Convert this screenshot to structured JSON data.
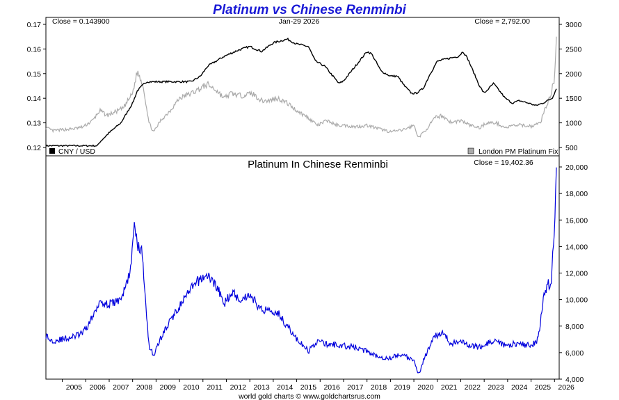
{
  "chart_data": [
    {
      "type": "line",
      "title": "Platinum vs Chinese Renminbi",
      "date_label": "Jan-29  2026",
      "left_close": "Close = 0.143900",
      "right_close": "Close = 2,792.00",
      "left_axis": {
        "ylim": [
          0.12,
          0.17
        ],
        "ticks": [
          "0.12",
          "0.13",
          "0.14",
          "0.15",
          "0.16",
          "0.17"
        ]
      },
      "right_axis": {
        "ylim": [
          500,
          3000
        ],
        "ticks": [
          "500",
          "1000",
          "1500",
          "2000",
          "2500",
          "3000"
        ]
      },
      "series": [
        {
          "name": "CNY / USD",
          "axis": "left",
          "color": "#000000",
          "x": [
            2004.3,
            2006.5,
            2006.6,
            2007.0,
            2007.5,
            2008.0,
            2008.2,
            2008.45,
            2008.6,
            2010.5,
            2010.9,
            2011.2,
            2011.9,
            2012.5,
            2013.0,
            2013.5,
            2014.0,
            2014.2,
            2014.6,
            2015.0,
            2015.5,
            2015.8,
            2016.2,
            2016.8,
            2017.0,
            2017.5,
            2018.0,
            2018.2,
            2018.6,
            2019.0,
            2019.3,
            2019.6,
            2019.9,
            2020.1,
            2020.4,
            2020.7,
            2021.0,
            2021.4,
            2021.9,
            2022.1,
            2022.3,
            2022.8,
            2023.0,
            2023.4,
            2023.9,
            2024.2,
            2024.5,
            2024.9,
            2025.2,
            2025.5,
            2025.9,
            2026.08
          ],
          "values": [
            0.1207,
            0.1207,
            0.1222,
            0.126,
            0.13,
            0.138,
            0.143,
            0.1455,
            0.1467,
            0.1467,
            0.149,
            0.153,
            0.157,
            0.1595,
            0.161,
            0.159,
            0.1625,
            0.163,
            0.164,
            0.162,
            0.161,
            0.155,
            0.153,
            0.146,
            0.147,
            0.153,
            0.159,
            0.158,
            0.151,
            0.149,
            0.149,
            0.145,
            0.142,
            0.142,
            0.144,
            0.15,
            0.155,
            0.156,
            0.157,
            0.159,
            0.156,
            0.145,
            0.142,
            0.146,
            0.14,
            0.138,
            0.139,
            0.138,
            0.137,
            0.138,
            0.14,
            0.1439
          ]
        },
        {
          "name": "London PM Platinum Fix",
          "axis": "right",
          "color": "#aaaaaa",
          "x": [
            2004.3,
            2004.6,
            2005.0,
            2005.5,
            2005.9,
            2006.3,
            2006.6,
            2006.9,
            2007.3,
            2007.6,
            2008.0,
            2008.2,
            2008.45,
            2008.7,
            2008.9,
            2009.2,
            2009.6,
            2010.0,
            2010.5,
            2010.9,
            2011.2,
            2011.6,
            2011.9,
            2012.2,
            2012.6,
            2013.1,
            2013.5,
            2013.8,
            2014.2,
            2014.6,
            2015.0,
            2015.5,
            2015.9,
            2016.3,
            2016.7,
            2017.0,
            2017.5,
            2018.0,
            2018.5,
            2019.0,
            2019.5,
            2020.0,
            2020.2,
            2020.5,
            2020.9,
            2021.2,
            2021.6,
            2022.0,
            2022.4,
            2022.8,
            2023.1,
            2023.5,
            2023.9,
            2024.3,
            2024.7,
            2025.0,
            2025.4,
            2025.6,
            2025.8,
            2026.0,
            2026.08
          ],
          "values": [
            900,
            840,
            860,
            880,
            920,
            1050,
            1250,
            1150,
            1230,
            1300,
            1600,
            2050,
            1750,
            1000,
            810,
            1050,
            1250,
            1500,
            1600,
            1700,
            1780,
            1650,
            1500,
            1600,
            1550,
            1600,
            1450,
            1450,
            1500,
            1400,
            1250,
            1100,
            950,
            1050,
            950,
            950,
            920,
            950,
            880,
            820,
            850,
            950,
            700,
            850,
            1100,
            1150,
            1000,
            1050,
            950,
            900,
            1000,
            1000,
            900,
            950,
            950,
            930,
            1000,
            1300,
            1500,
            1900,
            2792
          ]
        },
        {
          "name": "Platinum In Chinese Renminbi",
          "axis": "bottom",
          "color": "#0000dd",
          "x": [
            2004.3,
            2004.5,
            2005.0,
            2005.5,
            2005.9,
            2006.3,
            2006.6,
            2006.9,
            2007.3,
            2007.6,
            2007.9,
            2008.1,
            2008.2,
            2008.4,
            2008.7,
            2008.9,
            2009.2,
            2009.6,
            2010.0,
            2010.5,
            2010.9,
            2011.2,
            2011.6,
            2011.9,
            2012.2,
            2012.6,
            2013.0,
            2013.5,
            2013.8,
            2014.2,
            2014.6,
            2015.0,
            2015.5,
            2015.9,
            2016.3,
            2016.7,
            2017.0,
            2017.5,
            2018.0,
            2018.5,
            2019.0,
            2019.5,
            2020.0,
            2020.2,
            2020.5,
            2020.9,
            2021.2,
            2021.6,
            2022.0,
            2022.4,
            2022.8,
            2023.1,
            2023.5,
            2023.9,
            2024.3,
            2024.7,
            2025.0,
            2025.3,
            2025.5,
            2025.7,
            2025.85,
            2026.0,
            2026.08
          ],
          "values": [
            7300,
            6900,
            7000,
            7200,
            7500,
            8700,
            10000,
            9600,
            9800,
            10400,
            12200,
            15900,
            14000,
            13600,
            6500,
            5800,
            7100,
            8400,
            9500,
            10800,
            11600,
            11800,
            11000,
            9600,
            10600,
            10000,
            10400,
            9200,
            9300,
            9000,
            8000,
            7000,
            6100,
            6900,
            6600,
            6600,
            6500,
            6400,
            6100,
            5700,
            5600,
            5900,
            5300,
            4400,
            5800,
            7200,
            7600,
            6600,
            7000,
            6500,
            6400,
            6700,
            6800,
            6500,
            6700,
            6600,
            6500,
            7000,
            9800,
            11200,
            11000,
            15500,
            19402
          ]
        }
      ],
      "left_legend": "CNY / USD",
      "right_legend": "London PM Platinum Fix",
      "lower_title": "Platinum In Chinese Renminbi",
      "lower_close": "Close = 19,402.36",
      "lower_axis": {
        "ylim": [
          4000,
          20000
        ],
        "ticks": [
          "4,000",
          "6,000",
          "8,000",
          "10,000",
          "12,000",
          "14,000",
          "16,000",
          "18,000",
          "20,000"
        ]
      },
      "x_axis": {
        "xlim": [
          2004.3,
          2026.2
        ],
        "ticks": [
          "2005",
          "2006",
          "2007",
          "2008",
          "2009",
          "2010",
          "2011",
          "2012",
          "2013",
          "2014",
          "2015",
          "2016",
          "2017",
          "2018",
          "2019",
          "2020",
          "2021",
          "2022",
          "2023",
          "2024",
          "2025",
          "2026"
        ]
      },
      "footer": "world gold charts © www.goldchartsrus.com"
    }
  ]
}
